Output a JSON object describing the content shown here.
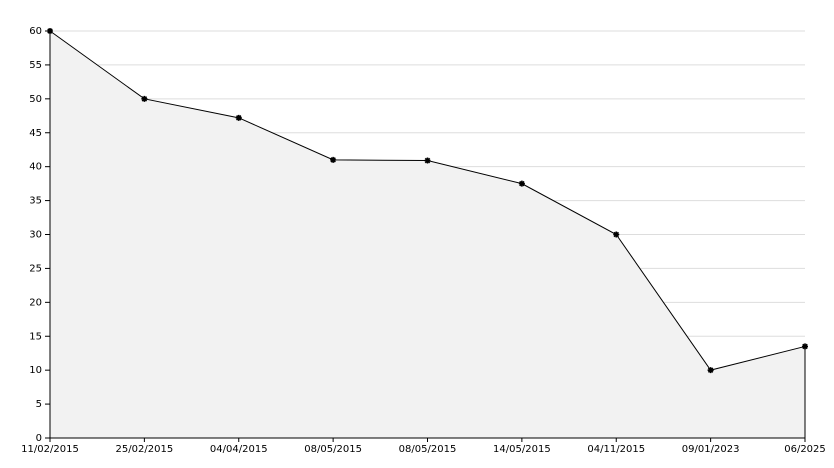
{
  "chart_data": {
    "type": "area",
    "categories": [
      "11/02/2015",
      "25/02/2015",
      "04/04/2015",
      "08/05/2015",
      "08/05/2015",
      "14/05/2015",
      "04/11/2015",
      "09/01/2023",
      "06/2025"
    ],
    "values": [
      60,
      50,
      47.2,
      41,
      40.9,
      37.5,
      30,
      10,
      13.5
    ],
    "color": "#000000",
    "fill_color": "#f2f2f2",
    "ylim": [
      0,
      60
    ],
    "yticks": [
      0,
      5,
      10,
      15,
      20,
      25,
      30,
      35,
      40,
      45,
      50,
      55,
      60
    ],
    "grid": true
  }
}
